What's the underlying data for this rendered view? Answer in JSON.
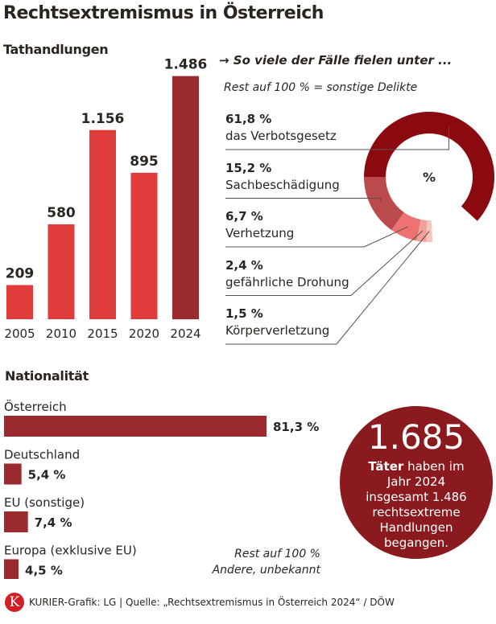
{
  "title": "Rechtsextremismus in Österreich",
  "chart_data": [
    {
      "type": "bar",
      "title": "Tathandlungen",
      "categories": [
        "2005",
        "2010",
        "2015",
        "2020",
        "2024"
      ],
      "values": [
        209,
        580,
        1156,
        895,
        1486
      ],
      "value_labels": [
        "209",
        "580",
        "1.156",
        "895",
        "1.486"
      ],
      "colors": [
        "#e03c3c",
        "#e03c3c",
        "#e03c3c",
        "#e03c3c",
        "#9b2a2e"
      ]
    },
    {
      "type": "pie",
      "variant": "donut",
      "title": "So viele der Fälle fielen unter ...",
      "note": "Rest auf 100  % = sonstige Delikte",
      "center_label": "%",
      "slices": [
        {
          "label": "das Verbotsgesetz",
          "value": 61.8,
          "value_label": "61,8 %",
          "color": "#8b0a10"
        },
        {
          "label": "Sachbeschädigung",
          "value": 15.2,
          "value_label": "15,2 %",
          "color": "#bb4a4c"
        },
        {
          "label": "Verhetzung",
          "value": 6.7,
          "value_label": "6,7 %",
          "color": "#ee7272"
        },
        {
          "label": "gefährliche Drohung",
          "value": 2.4,
          "value_label": "2,4 %",
          "color": "#f4a09a"
        },
        {
          "label": "Körperverletzung",
          "value": 1.5,
          "value_label": "1,5 %",
          "color": "#f9c4bd"
        }
      ]
    },
    {
      "type": "bar",
      "orientation": "horizontal",
      "title": "Nationalität",
      "categories": [
        "Österreich",
        "Deutschland",
        "EU (sonstige)",
        "Europa (exklusive EU)"
      ],
      "values": [
        81.3,
        5.4,
        7.4,
        4.5
      ],
      "value_labels": [
        "81,3 %",
        "5,4 %",
        "7,4 %",
        "4,5 %"
      ],
      "color": "#9b2a2e",
      "note": [
        "Rest auf 100 %",
        "Andere, unbekannt"
      ]
    }
  ],
  "callout": {
    "number": "1.685",
    "bold": "Täter",
    "text": " haben im Jahr 2024 insgesamt 1.486 rechtsextreme Handlungen begangen."
  },
  "footer": {
    "logo": "K",
    "text": "KURIER-Grafik: LG | Quelle: „Rechtsextremismus in Österreich 2024“ / DÖW"
  }
}
